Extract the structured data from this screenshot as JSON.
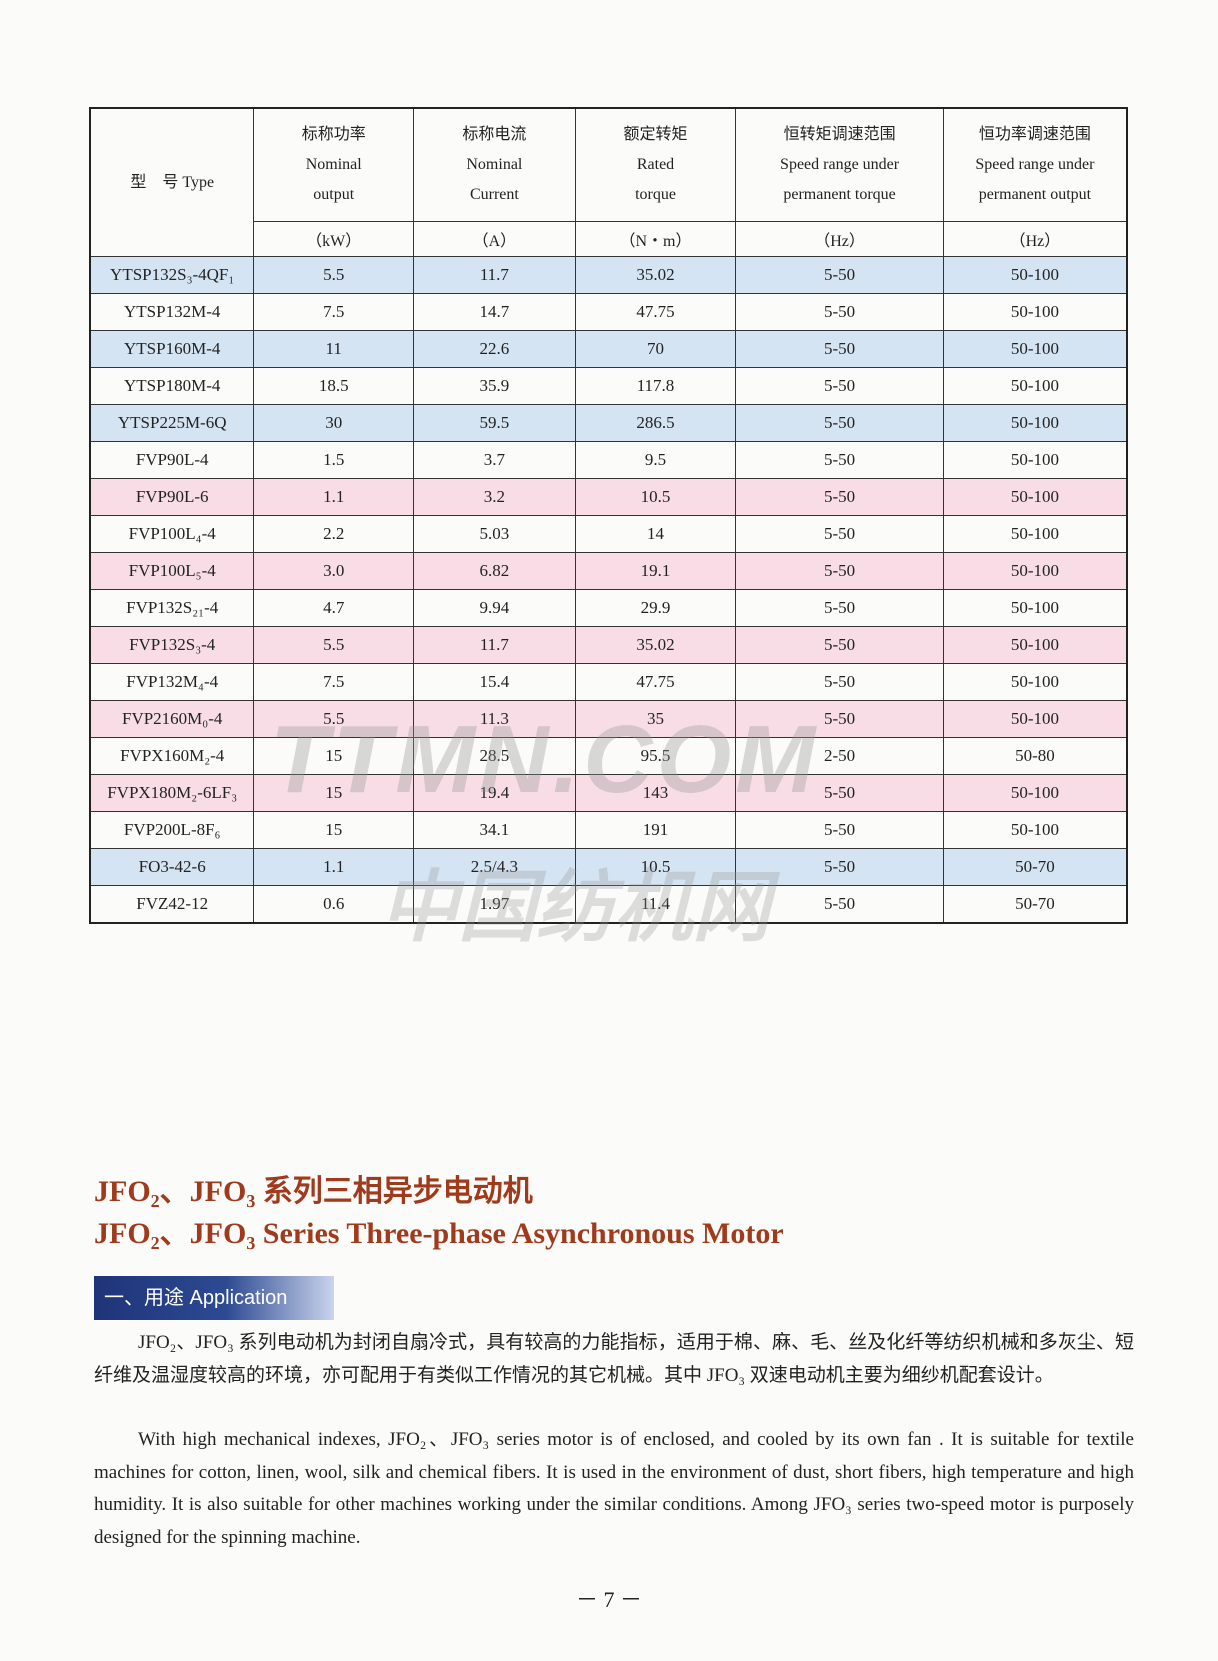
{
  "table": {
    "headers": [
      {
        "zh": "型　号 Type",
        "en1": "",
        "en2": "",
        "unit": ""
      },
      {
        "zh": "标称功率",
        "en1": "Nominal",
        "en2": "output",
        "unit": "（kW）"
      },
      {
        "zh": "标称电流",
        "en1": "Nominal",
        "en2": "Current",
        "unit": "（A）"
      },
      {
        "zh": "额定转矩",
        "en1": "Rated",
        "en2": "torque",
        "unit": "（N・m）"
      },
      {
        "zh": "恒转矩调速范围",
        "en1": "Speed range under",
        "en2": "permanent torque",
        "unit": "（Hz）"
      },
      {
        "zh": "恒功率调速范围",
        "en1": "Speed range under",
        "en2": "permanent output",
        "unit": "（Hz）"
      }
    ],
    "rows": [
      {
        "type": "YTSP132S₃-4QF₁",
        "output": "5.5",
        "current": "11.7",
        "torque": "35.02",
        "ct": "5-50",
        "cp": "50-100",
        "shade": "blue"
      },
      {
        "type": "YTSP132M-4",
        "output": "7.5",
        "current": "14.7",
        "torque": "47.75",
        "ct": "5-50",
        "cp": "50-100",
        "shade": "none"
      },
      {
        "type": "YTSP160M-4",
        "output": "11",
        "current": "22.6",
        "torque": "70",
        "ct": "5-50",
        "cp": "50-100",
        "shade": "blue"
      },
      {
        "type": "YTSP180M-4",
        "output": "18.5",
        "current": "35.9",
        "torque": "117.8",
        "ct": "5-50",
        "cp": "50-100",
        "shade": "none"
      },
      {
        "type": "YTSP225M-6Q",
        "output": "30",
        "current": "59.5",
        "torque": "286.5",
        "ct": "5-50",
        "cp": "50-100",
        "shade": "blue"
      },
      {
        "type": "FVP90L-4",
        "output": "1.5",
        "current": "3.7",
        "torque": "9.5",
        "ct": "5-50",
        "cp": "50-100",
        "shade": "none"
      },
      {
        "type": "FVP90L-6",
        "output": "1.1",
        "current": "3.2",
        "torque": "10.5",
        "ct": "5-50",
        "cp": "50-100",
        "shade": "pink"
      },
      {
        "type": "FVP100L₄-4",
        "output": "2.2",
        "current": "5.03",
        "torque": "14",
        "ct": "5-50",
        "cp": "50-100",
        "shade": "none"
      },
      {
        "type": "FVP100L₅-4",
        "output": "3.0",
        "current": "6.82",
        "torque": "19.1",
        "ct": "5-50",
        "cp": "50-100",
        "shade": "pink"
      },
      {
        "type": "FVP132S₂₁-4",
        "output": "4.7",
        "current": "9.94",
        "torque": "29.9",
        "ct": "5-50",
        "cp": "50-100",
        "shade": "none"
      },
      {
        "type": "FVP132S₃-4",
        "output": "5.5",
        "current": "11.7",
        "torque": "35.02",
        "ct": "5-50",
        "cp": "50-100",
        "shade": "pink"
      },
      {
        "type": "FVP132M₄-4",
        "output": "7.5",
        "current": "15.4",
        "torque": "47.75",
        "ct": "5-50",
        "cp": "50-100",
        "shade": "none"
      },
      {
        "type": "FVP2160M₀-4",
        "output": "5.5",
        "current": "11.3",
        "torque": "35",
        "ct": "5-50",
        "cp": "50-100",
        "shade": "pink"
      },
      {
        "type": "FVPX160M₂-4",
        "output": "15",
        "current": "28.5",
        "torque": "95.5",
        "ct": "2-50",
        "cp": "50-80",
        "shade": "none"
      },
      {
        "type": "FVPX180M₂-6LF₃",
        "output": "15",
        "current": "19.4",
        "torque": "143",
        "ct": "5-50",
        "cp": "50-100",
        "shade": "pink"
      },
      {
        "type": "FVP200L-8F₆",
        "output": "15",
        "current": "34.1",
        "torque": "191",
        "ct": "5-50",
        "cp": "50-100",
        "shade": "none"
      },
      {
        "type": "FO3-42-6",
        "output": "1.1",
        "current": "2.5/4.3",
        "torque": "10.5",
        "ct": "5-50",
        "cp": "50-70",
        "shade": "blue"
      },
      {
        "type": "FVZ42-12",
        "output": "0.6",
        "current": "1.97",
        "torque": "11.4",
        "ct": "5-50",
        "cp": "50-70",
        "shade": "none"
      }
    ]
  },
  "watermark": {
    "en": "TTMN.COM",
    "zh": "中国纺机网"
  },
  "section": {
    "title_zh": "JFO₂、JFO₃ 系列三相异步电动机",
    "title_en": "JFO₂、JFO₃ Series Three-phase Asynchronous Motor",
    "banner": "一、用途 Application",
    "para_zh": "JFO₂、JFO₃ 系列电动机为封闭自扇冷式，具有较高的力能指标，适用于棉、麻、毛、丝及化纤等纺织机械和多灰尘、短纤维及温湿度较高的环境，亦可配用于有类似工作情况的其它机械。其中 JFO₃ 双速电动机主要为细纱机配套设计。",
    "para_en": "With high mechanical indexes, JFO₂、JFO₃ series motor is of enclosed, and cooled by its own fan . It is suitable for textile machines for cotton, linen, wool, silk and chemical fibers. It is used in the environment of dust, short fibers,  high temperature and high humidity.  It is also suitable for other machines working under the similar conditions. Among JFO₃ series two-speed motor is purposely designed for the spinning machine."
  },
  "page_number": "－ 7 －",
  "colors": {
    "blue_row": "#d5e4f3",
    "pink_row": "#f8dde7",
    "title": "#a03a1c",
    "banner": "#1f3479"
  }
}
